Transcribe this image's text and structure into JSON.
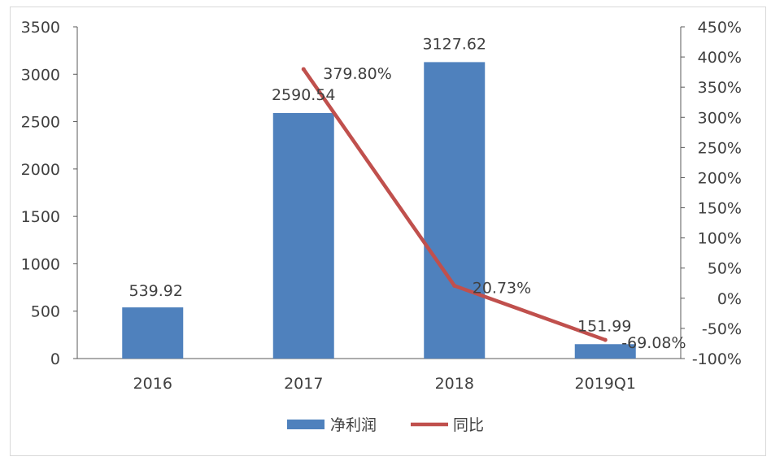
{
  "chart_data": {
    "type": "bar",
    "categories": [
      "2016",
      "2017",
      "2018",
      "2019Q1"
    ],
    "series": [
      {
        "name": "净利润",
        "type": "bar",
        "axis": "left",
        "values": [
          539.92,
          2590.54,
          3127.62,
          151.99
        ],
        "labels": [
          "539.92",
          "2590.54",
          "3127.62",
          "151.99"
        ],
        "color": "#4f81bd"
      },
      {
        "name": "同比",
        "type": "line",
        "axis": "right",
        "x": [
          "2017",
          "2018",
          "2019Q1"
        ],
        "values": [
          379.8,
          20.73,
          -69.08
        ],
        "labels": [
          "379.80%",
          "20.73%",
          "-69.08%"
        ],
        "color": "#c0504d"
      }
    ],
    "y_left": {
      "ylim": [
        0,
        3500
      ],
      "ticks": [
        0,
        500,
        1000,
        1500,
        2000,
        2500,
        3000,
        3500
      ],
      "tick_labels": [
        "0",
        "500",
        "1000",
        "1500",
        "2000",
        "2500",
        "3000",
        "3500"
      ]
    },
    "y_right": {
      "ylim": [
        -100,
        450
      ],
      "ticks": [
        -100,
        -50,
        0,
        50,
        100,
        150,
        200,
        250,
        300,
        350,
        400,
        450
      ],
      "tick_labels": [
        "-100%",
        "-50%",
        "0%",
        "50%",
        "100%",
        "150%",
        "200%",
        "250%",
        "300%",
        "350%",
        "400%",
        "450%"
      ]
    },
    "grid": false,
    "legend": "bottom"
  }
}
